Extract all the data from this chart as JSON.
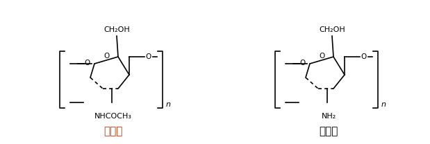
{
  "bg_color": "#ffffff",
  "line_color": "#000000",
  "label1_color": "#cc3300",
  "label2_color": "#000000",
  "label1": "甲壳素",
  "label2": "壳聚糖",
  "group1": "NHCOCH₃",
  "group2": "NH₂",
  "ch2oh": "CH₂OH",
  "o_label": "O",
  "sub_n": "n",
  "figsize": [
    6.19,
    2.08
  ],
  "dpi": 100
}
